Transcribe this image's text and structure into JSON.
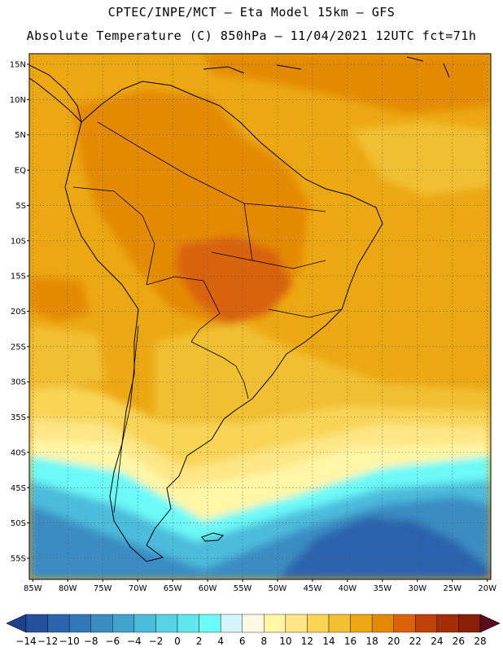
{
  "header": {
    "line1": "CPTEC/INPE/MCT –  Eta Model 15km – GFS",
    "line2": "Absolute Temperature (C) 850hPa – 11/04/2021 12UTC fct=71h"
  },
  "map": {
    "lat_labels": [
      "15N",
      "10N",
      "5N",
      "EQ",
      "5S",
      "10S",
      "15S",
      "20S",
      "25S",
      "30S",
      "35S",
      "40S",
      "45S",
      "50S",
      "55S"
    ],
    "lon_labels": [
      "85W",
      "80W",
      "75W",
      "70W",
      "65W",
      "60W",
      "55W",
      "50W",
      "45W",
      "40W",
      "35W",
      "30W",
      "25W",
      "20W"
    ],
    "lat_values": [
      15,
      10,
      5,
      0,
      -5,
      -10,
      -15,
      -20,
      -25,
      -30,
      -35,
      -40,
      -45,
      -50,
      -55
    ],
    "lon_values": [
      -85,
      -80,
      -75,
      -70,
      -65,
      -60,
      -55,
      -50,
      -45,
      -40,
      -35,
      -30,
      -25,
      -20
    ],
    "extent": {
      "lon_min": -85.5,
      "lon_max": -19.5,
      "lat_min": -58,
      "lat_max": 16.5
    }
  },
  "colorbar": {
    "labels": [
      "-14",
      "-12",
      "-10",
      "-8",
      "-6",
      "-4",
      "-2",
      "0",
      "2",
      "4",
      "6",
      "8",
      "10",
      "12",
      "14",
      "16",
      "18",
      "20",
      "22",
      "24",
      "26",
      "28"
    ],
    "colors": [
      "#1e3f8c",
      "#23519c",
      "#2a64ad",
      "#3278b9",
      "#3a8cc3",
      "#43a3cf",
      "#4bbcdc",
      "#58d2e6",
      "#62e6ee",
      "#6cfaf8",
      "#d6f5fb",
      "#fff8e3",
      "#fff6a6",
      "#fde685",
      "#f9d556",
      "#f1c033",
      "#eca812",
      "#e48a02",
      "#d9620b",
      "#bf4008",
      "#a42d04",
      "#8b1f05",
      "#5a0c1e"
    ]
  },
  "field": {
    "units": "C",
    "level": "850hPa",
    "zones": [
      {
        "name": "deep-south-atlantic-cold",
        "value_c": -12
      },
      {
        "name": "south-atlantic-cool",
        "value_c": -4
      },
      {
        "name": "patagonia-cool",
        "value_c": 2
      },
      {
        "name": "central-argentina",
        "value_c": 12
      },
      {
        "name": "south-brazil",
        "value_c": 16
      },
      {
        "name": "tropical-ocean",
        "value_c": 18
      },
      {
        "name": "amazon-interior",
        "value_c": 20
      },
      {
        "name": "central-brazil-hot",
        "value_c": 22
      }
    ]
  }
}
